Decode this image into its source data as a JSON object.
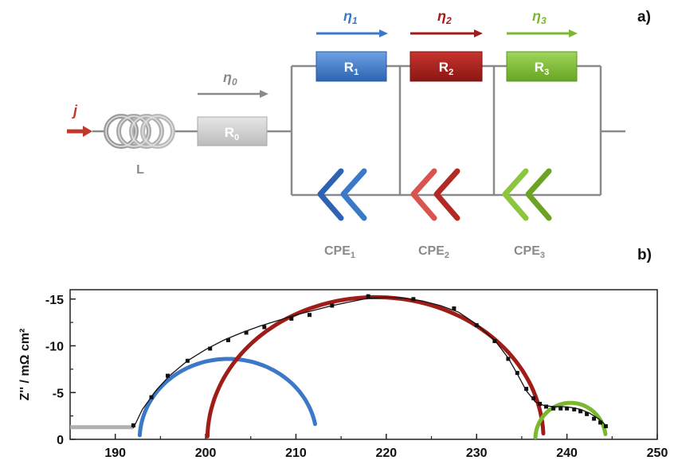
{
  "diagram": {
    "panel_a": "a)",
    "panel_b": "b)",
    "current_label": "j",
    "inductor_label": "L",
    "r0": {
      "main": "R",
      "sub": "0"
    },
    "eta0": {
      "main": "η",
      "sub": "0"
    },
    "resistors": [
      {
        "main": "R",
        "sub": "1"
      },
      {
        "main": "R",
        "sub": "2"
      },
      {
        "main": "R",
        "sub": "3"
      }
    ],
    "etas": [
      {
        "main": "η",
        "sub": "1"
      },
      {
        "main": "η",
        "sub": "2"
      },
      {
        "main": "η",
        "sub": "3"
      }
    ],
    "cpes": [
      {
        "main": "CPE",
        "sub": "1"
      },
      {
        "main": "CPE",
        "sub": "2"
      },
      {
        "main": "CPE",
        "sub": "3"
      }
    ],
    "colors": {
      "red": "#c0392b",
      "gray": "#8a8a8a",
      "light_gray": "#c8c8c8",
      "blue": "#3b78c8",
      "darkred": "#a01c18",
      "green": "#7ab82e"
    }
  },
  "chart_data": {
    "type": "line",
    "ylabel": "Z'' / mΩ cm²",
    "xlabel": "",
    "xlim": [
      185,
      250
    ],
    "ylim": [
      0,
      -16
    ],
    "x_ticks": [
      190,
      200,
      210,
      220,
      230,
      240,
      250
    ],
    "y_ticks": [
      0,
      -5,
      -10,
      -15
    ],
    "y_tick_labels": [
      "0",
      "-5",
      "-10",
      "-15"
    ],
    "series": [
      {
        "color": "#b0b0b0",
        "kind": "line",
        "points": [
          [
            185,
            -1.3
          ],
          [
            192,
            -1.3
          ]
        ]
      },
      {
        "color": "#3b78c8",
        "kind": "arc",
        "center": 202.5,
        "radius": 9.8,
        "height": 8.6,
        "start": 0.05,
        "end": 2.95
      },
      {
        "color": "#a01c18",
        "kind": "arc",
        "center": 218.8,
        "radius": 18.6,
        "height": 15.2,
        "start": 0.02,
        "end": 3.1
      },
      {
        "color": "#7ab82e",
        "kind": "arc",
        "center": 240.4,
        "radius": 3.9,
        "height": 3.9,
        "start": 0.05,
        "end": 3.0
      },
      {
        "color": "#111111",
        "kind": "fit",
        "points": [
          [
            192.0,
            -1.2
          ],
          [
            193.0,
            -3.2
          ],
          [
            194.5,
            -5.2
          ],
          [
            196.0,
            -6.8
          ],
          [
            198.0,
            -8.4
          ],
          [
            200.0,
            -9.6
          ],
          [
            202.0,
            -10.6
          ],
          [
            204.0,
            -11.4
          ],
          [
            206.0,
            -12.1
          ],
          [
            208.0,
            -12.7
          ],
          [
            210.0,
            -13.3
          ],
          [
            212.0,
            -13.8
          ],
          [
            214.0,
            -14.3
          ],
          [
            216.0,
            -14.7
          ],
          [
            218.0,
            -15.1
          ],
          [
            220.0,
            -15.2
          ],
          [
            222.0,
            -15.1
          ],
          [
            224.0,
            -14.8
          ],
          [
            226.0,
            -14.3
          ],
          [
            228.0,
            -13.6
          ],
          [
            230.0,
            -12.3
          ],
          [
            232.0,
            -10.6
          ],
          [
            233.5,
            -8.7
          ],
          [
            234.5,
            -7.0
          ],
          [
            235.5,
            -5.2
          ],
          [
            236.5,
            -4.0
          ],
          [
            237.5,
            -3.6
          ],
          [
            238.5,
            -3.5
          ],
          [
            239.5,
            -3.5
          ],
          [
            240.5,
            -3.4
          ],
          [
            241.5,
            -3.2
          ],
          [
            242.5,
            -2.8
          ],
          [
            243.5,
            -2.2
          ],
          [
            244.2,
            -1.6
          ]
        ]
      },
      {
        "color": "#111111",
        "kind": "markers",
        "points": [
          [
            192.0,
            -1.5
          ],
          [
            194.0,
            -4.5
          ],
          [
            195.8,
            -6.8
          ],
          [
            198.0,
            -8.4
          ],
          [
            200.5,
            -9.7
          ],
          [
            202.5,
            -10.6
          ],
          [
            204.5,
            -11.4
          ],
          [
            206.5,
            -12.0
          ],
          [
            209.5,
            -12.9
          ],
          [
            211.5,
            -13.3
          ],
          [
            214.0,
            -14.3
          ],
          [
            218.0,
            -15.3
          ],
          [
            223.0,
            -15.0
          ],
          [
            227.5,
            -14.0
          ],
          [
            230.0,
            -12.2
          ],
          [
            232.0,
            -10.5
          ],
          [
            233.5,
            -8.6
          ],
          [
            234.5,
            -7.1
          ],
          [
            235.5,
            -5.4
          ],
          [
            236.3,
            -4.4
          ],
          [
            237.0,
            -3.8
          ],
          [
            237.7,
            -3.5
          ],
          [
            238.5,
            -3.3
          ],
          [
            239.3,
            -3.3
          ],
          [
            240.0,
            -3.3
          ],
          [
            240.8,
            -3.2
          ],
          [
            241.5,
            -3.0
          ],
          [
            242.2,
            -2.7
          ],
          [
            243.0,
            -2.2
          ],
          [
            243.7,
            -1.8
          ],
          [
            244.3,
            -1.4
          ]
        ]
      }
    ]
  }
}
